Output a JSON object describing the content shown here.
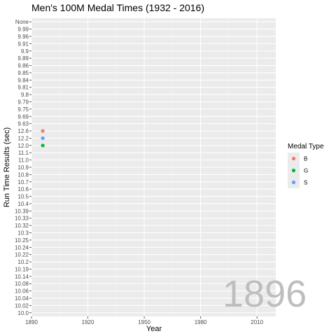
{
  "chart_data": {
    "type": "scatter",
    "title": "Men's 100M Medal Times (1932 - 2016)",
    "xlabel": "Year",
    "ylabel": "Run Time Results (sec)",
    "xlim": [
      1890,
      2020
    ],
    "x_ticks": [
      1890,
      1920,
      1950,
      1980,
      2010
    ],
    "y_categories": [
      "10.0",
      "10.02",
      "10.04",
      "10.06",
      "10.08",
      "10.14",
      "10.19",
      "10.2",
      "10.22",
      "10.24",
      "10.25",
      "10.3",
      "10.32",
      "10.33",
      "10.39",
      "10.4",
      "10.5",
      "10.6",
      "10.7",
      "10.8",
      "10.9",
      "11.0",
      "11.1",
      "12.0",
      "12.2",
      "12.6",
      "9.63",
      "9.69",
      "9.75",
      "9.79",
      "9.8",
      "9.81",
      "9.84",
      "9.85",
      "9.86",
      "9.89",
      "9.9",
      "9.91",
      "9.96",
      "9.99",
      "None"
    ],
    "legend": {
      "title": "Medal Type",
      "position": "right",
      "entries": [
        {
          "label": "B",
          "color": "#F8766D"
        },
        {
          "label": "G",
          "color": "#00BA38"
        },
        {
          "label": "S",
          "color": "#619CFF"
        }
      ]
    },
    "series": [
      {
        "name": "B",
        "color": "#F8766D",
        "points": [
          {
            "x": 1896,
            "y": "12.6"
          }
        ]
      },
      {
        "name": "G",
        "color": "#00BA38",
        "points": [
          {
            "x": 1896,
            "y": "12.0"
          }
        ]
      },
      {
        "name": "S",
        "color": "#619CFF",
        "points": [
          {
            "x": 1896,
            "y": "12.2"
          }
        ]
      }
    ],
    "frame_label": "1896",
    "grid": true
  }
}
